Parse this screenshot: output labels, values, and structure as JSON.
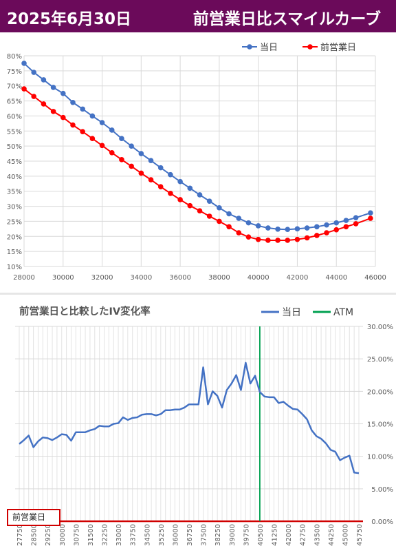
{
  "header": {
    "date": "2025年6月30日",
    "title": "前営業日比スマイルカーブ",
    "bg_color": "#6b0a5a"
  },
  "chart_data": [
    {
      "type": "scatter",
      "title": "",
      "xlabel": "",
      "ylabel": "",
      "xlim": [
        28000,
        46000
      ],
      "ylim": [
        0.1,
        0.8
      ],
      "xticks": [
        28000,
        30000,
        32000,
        34000,
        36000,
        38000,
        40000,
        42000,
        44000,
        46000
      ],
      "yticks": [
        "10%",
        "15%",
        "20%",
        "25%",
        "30%",
        "35%",
        "40%",
        "45%",
        "50%",
        "55%",
        "60%",
        "65%",
        "70%",
        "75%",
        "80%"
      ],
      "grid": true,
      "legend": "top-right",
      "series": [
        {
          "name": "当日",
          "color": "#4472c4",
          "x": [
            28000,
            28500,
            29000,
            29500,
            30000,
            30500,
            31000,
            31500,
            32000,
            32500,
            33000,
            33500,
            34000,
            34500,
            35000,
            35500,
            36000,
            36500,
            37000,
            37500,
            38000,
            38500,
            39000,
            39500,
            40000,
            40500,
            41000,
            41500,
            42000,
            42500,
            43000,
            43500,
            44000,
            44500,
            45000,
            45750
          ],
          "y": [
            0.775,
            0.745,
            0.72,
            0.695,
            0.675,
            0.645,
            0.623,
            0.6,
            0.578,
            0.553,
            0.525,
            0.5,
            0.475,
            0.452,
            0.428,
            0.405,
            0.382,
            0.36,
            0.338,
            0.317,
            0.295,
            0.275,
            0.26,
            0.245,
            0.235,
            0.228,
            0.224,
            0.223,
            0.225,
            0.228,
            0.232,
            0.238,
            0.245,
            0.253,
            0.262,
            0.278
          ]
        },
        {
          "name": "前営業日",
          "color": "#ff0000",
          "x": [
            28000,
            28500,
            29000,
            29500,
            30000,
            30500,
            31000,
            31500,
            32000,
            32500,
            33000,
            33500,
            34000,
            34500,
            35000,
            35500,
            36000,
            36500,
            37000,
            37500,
            38000,
            38500,
            39000,
            39500,
            40000,
            40500,
            41000,
            41500,
            42000,
            42500,
            43000,
            43500,
            44000,
            44500,
            45000,
            45750
          ],
          "y": [
            0.69,
            0.665,
            0.64,
            0.615,
            0.595,
            0.57,
            0.548,
            0.525,
            0.502,
            0.478,
            0.455,
            0.433,
            0.41,
            0.388,
            0.365,
            0.343,
            0.322,
            0.302,
            0.285,
            0.267,
            0.25,
            0.232,
            0.212,
            0.198,
            0.19,
            0.187,
            0.187,
            0.187,
            0.19,
            0.195,
            0.203,
            0.212,
            0.222,
            0.232,
            0.242,
            0.26
          ]
        }
      ]
    },
    {
      "type": "line",
      "title": "前営業日と比較したIV変化率",
      "xlabel": "",
      "ylabel": "",
      "ylim": [
        0,
        0.3
      ],
      "yticks": [
        "0.00%",
        "5.00%",
        "10.00%",
        "15.00%",
        "20.00%",
        "25.00%",
        "30.00%"
      ],
      "xlim": [
        27750,
        45750
      ],
      "xticks": [
        27750,
        28500,
        29250,
        30000,
        30750,
        31500,
        32250,
        33000,
        33750,
        34500,
        35250,
        36000,
        36750,
        37500,
        38250,
        39000,
        39750,
        40500,
        41250,
        42000,
        42750,
        43500,
        44250,
        45000,
        45750
      ],
      "atm": 40500,
      "grid": true,
      "legend": "top-right",
      "legend_items": [
        "当日",
        "ATM"
      ],
      "zero_label": "前営業日",
      "series": [
        {
          "name": "当日",
          "color": "#4472c4",
          "x": [
            27750,
            28000,
            28250,
            28500,
            28750,
            29000,
            29250,
            29500,
            29750,
            30000,
            30250,
            30500,
            30750,
            31000,
            31250,
            31500,
            31750,
            32000,
            32250,
            32500,
            32750,
            33000,
            33250,
            33500,
            33750,
            34000,
            34250,
            34500,
            34750,
            35000,
            35250,
            35500,
            35750,
            36000,
            36250,
            36500,
            36750,
            37000,
            37250,
            37500,
            37750,
            38000,
            38250,
            38500,
            38750,
            39000,
            39250,
            39500,
            39750,
            40000,
            40250,
            40500,
            40750,
            41000,
            41250,
            41500,
            41750,
            42000,
            42250,
            42500,
            42750,
            43000,
            43250,
            43500,
            43750,
            44000,
            44250,
            44500,
            44750,
            45000,
            45250,
            45500,
            45750
          ],
          "y": [
            0.119,
            0.125,
            0.132,
            0.114,
            0.123,
            0.129,
            0.128,
            0.125,
            0.129,
            0.134,
            0.133,
            0.124,
            0.137,
            0.137,
            0.137,
            0.14,
            0.142,
            0.147,
            0.146,
            0.146,
            0.15,
            0.151,
            0.16,
            0.156,
            0.159,
            0.16,
            0.164,
            0.165,
            0.165,
            0.163,
            0.165,
            0.171,
            0.171,
            0.172,
            0.172,
            0.175,
            0.18,
            0.18,
            0.18,
            0.237,
            0.18,
            0.2,
            0.193,
            0.175,
            0.202,
            0.212,
            0.225,
            0.202,
            0.244,
            0.212,
            0.224,
            0.199,
            0.192,
            0.191,
            0.191,
            0.182,
            0.184,
            0.178,
            0.173,
            0.172,
            0.165,
            0.157,
            0.14,
            0.131,
            0.127,
            0.12,
            0.11,
            0.107,
            0.094,
            0.098,
            0.101,
            0.075,
            0.074
          ]
        }
      ]
    }
  ]
}
